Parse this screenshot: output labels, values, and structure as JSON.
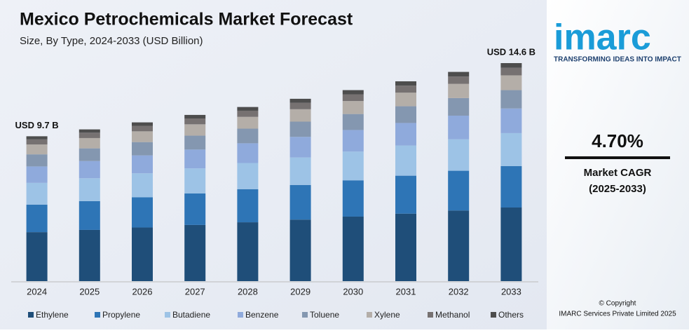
{
  "chart_data": {
    "type": "stacked_bar",
    "title": "Mexico Petrochemicals Market Forecast",
    "subtitle": "Size, By Type, 2024-2033 (USD Billion)",
    "categories": [
      "2024",
      "2025",
      "2026",
      "2027",
      "2028",
      "2029",
      "2030",
      "2031",
      "2032",
      "2033"
    ],
    "series": [
      {
        "name": "Ethylene",
        "color": "#1f4e79",
        "values": [
          3.28,
          3.43,
          3.59,
          3.76,
          3.94,
          4.12,
          4.32,
          4.52,
          4.73,
          4.93
        ]
      },
      {
        "name": "Propylene",
        "color": "#2e75b6",
        "values": [
          1.84,
          1.93,
          2.02,
          2.11,
          2.21,
          2.32,
          2.43,
          2.54,
          2.66,
          2.77
        ]
      },
      {
        "name": "Butadiene",
        "color": "#9dc3e6",
        "values": [
          1.46,
          1.53,
          1.61,
          1.68,
          1.76,
          1.84,
          1.93,
          2.02,
          2.11,
          2.21
        ]
      },
      {
        "name": "Benzene",
        "color": "#8faadc",
        "values": [
          1.1,
          1.15,
          1.2,
          1.26,
          1.32,
          1.38,
          1.44,
          1.51,
          1.58,
          1.65
        ]
      },
      {
        "name": "Toluene",
        "color": "#8497b0",
        "values": [
          0.81,
          0.85,
          0.89,
          0.93,
          0.98,
          1.02,
          1.07,
          1.12,
          1.18,
          1.23
        ]
      },
      {
        "name": "Xylene",
        "color": "#b4aea8",
        "values": [
          0.66,
          0.69,
          0.72,
          0.76,
          0.79,
          0.83,
          0.87,
          0.91,
          0.95,
          0.99
        ]
      },
      {
        "name": "Methanol",
        "color": "#767171",
        "values": [
          0.34,
          0.36,
          0.37,
          0.39,
          0.41,
          0.43,
          0.45,
          0.47,
          0.49,
          0.51
        ]
      },
      {
        "name": "Others",
        "color": "#4d4d4d",
        "values": [
          0.21,
          0.22,
          0.23,
          0.24,
          0.25,
          0.27,
          0.28,
          0.29,
          0.31,
          0.31
        ]
      }
    ],
    "annotations": [
      {
        "text": "USD 9.7 B",
        "x": "2024"
      },
      {
        "text": "USD 14.6 B",
        "x": "2033"
      }
    ]
  },
  "sidebar": {
    "logo": "imarc",
    "tagline": "TRANSFORMING IDEAS INTO IMPACT",
    "cagr": "4.70%",
    "cagr_label": "Market CAGR",
    "cagr_period": "(2025-2033)",
    "copyright": "© Copyright",
    "copyright_owner": "IMARC Services Private Limited 2025"
  }
}
